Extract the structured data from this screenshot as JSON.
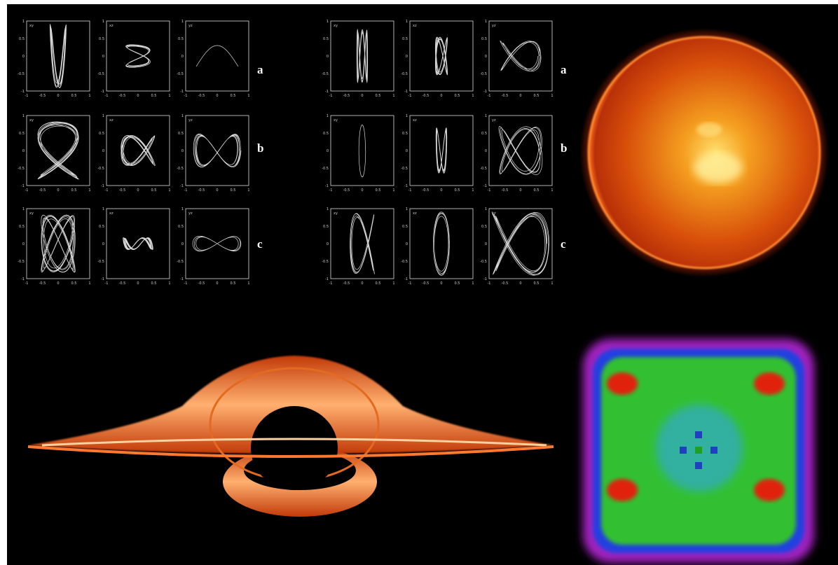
{
  "left_figure": {
    "row_labels": [
      "a",
      "b",
      "c"
    ],
    "panel_tags": [
      "xy",
      "xz",
      "yz"
    ],
    "x_ticks": [
      "-1",
      "-0.5",
      "0",
      "0.5",
      "1"
    ],
    "y_ticks": [
      "1",
      "0.5",
      "0",
      "-0.5",
      "-1"
    ]
  },
  "right_figure": {
    "row_labels": [
      "a",
      "b",
      "c"
    ],
    "panel_tags": [
      "xy",
      "xz",
      "yz"
    ],
    "x_ticks": [
      "-1",
      "-0.5",
      "0",
      "0.5",
      "1"
    ],
    "y_ticks": [
      "1",
      "0.5",
      "0",
      "-0.5",
      "-1"
    ]
  }
}
